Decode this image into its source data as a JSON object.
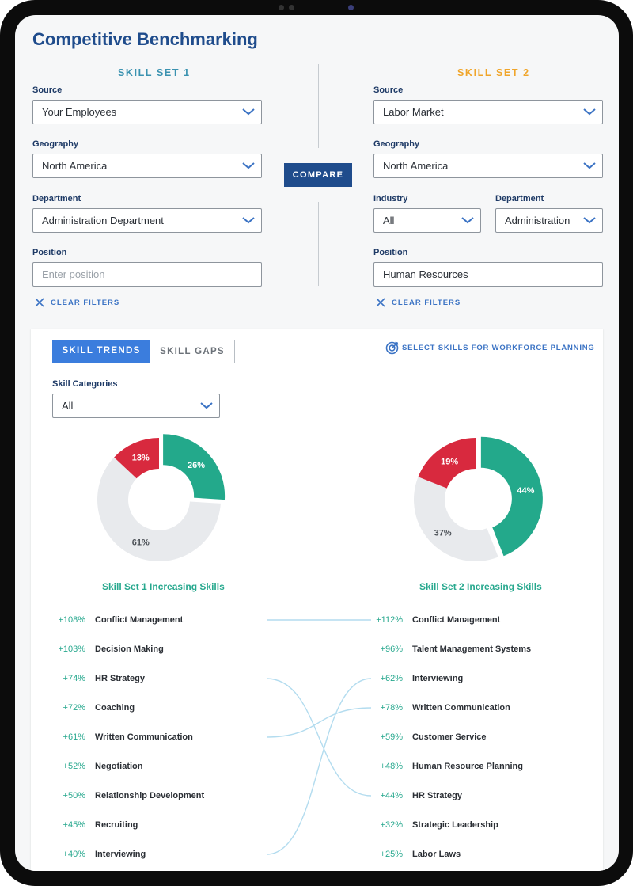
{
  "header": {
    "title": "Competitive Benchmarking",
    "compare_label": "COMPARE"
  },
  "set1": {
    "heading": "SKILL SET 1",
    "heading_color": "#3a92b0",
    "source_label": "Source",
    "source_value": "Your Employees",
    "geo_label": "Geography",
    "geo_value": "North America",
    "dept_label": "Department",
    "dept_value": "Administration Department",
    "position_label": "Position",
    "position_placeholder": "Enter position",
    "clear_label": "CLEAR FILTERS"
  },
  "set2": {
    "heading": "SKILL SET 2",
    "heading_color": "#f0a52a",
    "source_label": "Source",
    "source_value": "Labor Market",
    "geo_label": "Geography",
    "geo_value": "North America",
    "industry_label": "Industry",
    "industry_value": "All",
    "dept_label": "Department",
    "dept_value": "Administration",
    "position_label": "Position",
    "position_value": "Human Resources",
    "clear_label": "CLEAR FILTERS"
  },
  "panel": {
    "tabs": [
      "SKILL TRENDS",
      "SKILL GAPS"
    ],
    "active_tab": "SKILL TRENDS",
    "workforce_link": "SELECT SKILLS FOR WORKFORCE PLANNING",
    "category_label": "Skill Categories",
    "category_value": "All"
  },
  "chart_data": [
    {
      "type": "pie",
      "slices": [
        {
          "label": "26%",
          "value": 26,
          "color": "#23a98b"
        },
        {
          "label": "61%",
          "value": 61,
          "color": "#e8eaed"
        },
        {
          "label": "13%",
          "value": 13,
          "color": "#d8293e"
        }
      ]
    },
    {
      "type": "pie",
      "slices": [
        {
          "label": "44%",
          "value": 44,
          "color": "#23a98b"
        },
        {
          "label": "37%",
          "value": 37,
          "color": "#e8eaed"
        },
        {
          "label": "19%",
          "value": 19,
          "color": "#d8293e"
        }
      ]
    }
  ],
  "lists": {
    "set1_title": "Skill Set 1 Increasing Skills",
    "set2_title": "Skill Set 2 Increasing Skills",
    "set1": [
      {
        "pct": "+108%",
        "skill": "Conflict Management"
      },
      {
        "pct": "+103%",
        "skill": "Decision Making"
      },
      {
        "pct": "+74%",
        "skill": "HR Strategy"
      },
      {
        "pct": "+72%",
        "skill": "Coaching"
      },
      {
        "pct": "+61%",
        "skill": "Written Communication"
      },
      {
        "pct": "+52%",
        "skill": "Negotiation"
      },
      {
        "pct": "+50%",
        "skill": "Relationship Development"
      },
      {
        "pct": "+45%",
        "skill": "Recruiting"
      },
      {
        "pct": "+40%",
        "skill": "Interviewing"
      }
    ],
    "set2": [
      {
        "pct": "+112%",
        "skill": "Conflict Management"
      },
      {
        "pct": "+96%",
        "skill": "Talent Management Systems"
      },
      {
        "pct": "+62%",
        "skill": "Interviewing"
      },
      {
        "pct": "+78%",
        "skill": "Written Communication"
      },
      {
        "pct": "+59%",
        "skill": "Customer Service"
      },
      {
        "pct": "+48%",
        "skill": "Human Resource Planning"
      },
      {
        "pct": "+44%",
        "skill": "HR Strategy"
      },
      {
        "pct": "+32%",
        "skill": "Strategic Leadership"
      },
      {
        "pct": "+25%",
        "skill": "Labor Laws"
      }
    ],
    "link_color": "#b3dcef"
  }
}
